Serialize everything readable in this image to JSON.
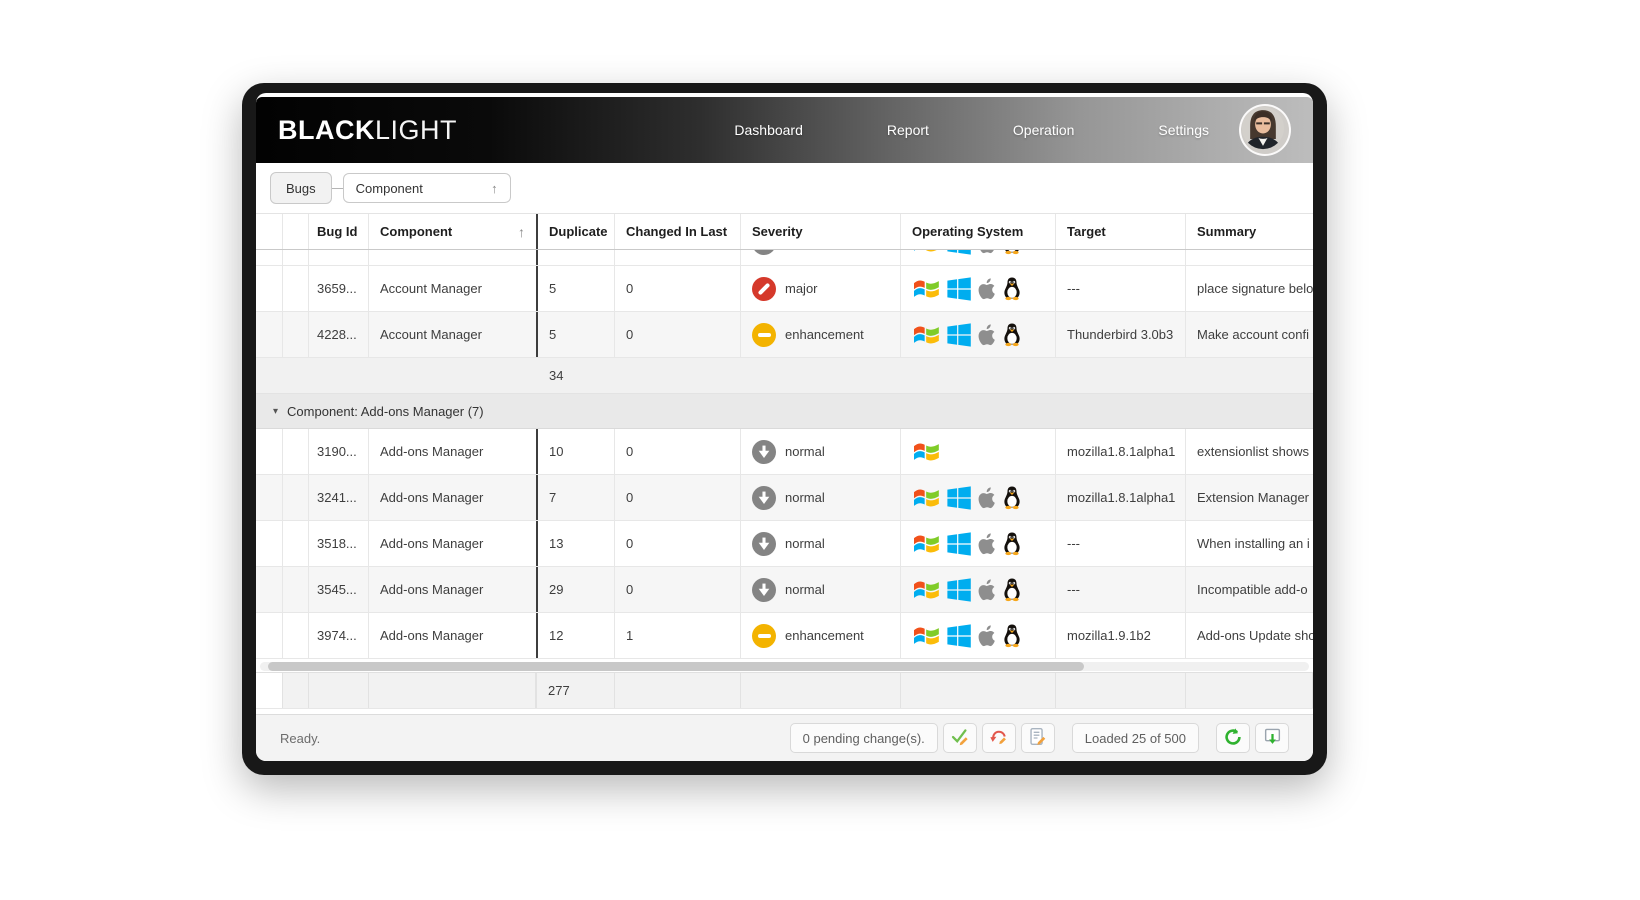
{
  "header": {
    "brand_bold": "BLACK",
    "brand_light": "LIGHT",
    "nav": [
      {
        "label": "Dashboard"
      },
      {
        "label": "Report"
      },
      {
        "label": "Operation"
      },
      {
        "label": "Settings"
      }
    ],
    "avatar": "user-avatar"
  },
  "toolbar": {
    "bugs_label": "Bugs",
    "group_field": "Component",
    "sort_direction": "ascending"
  },
  "grid": {
    "columns": [
      {
        "key": "handle",
        "label": ""
      },
      {
        "key": "handle2",
        "label": ""
      },
      {
        "key": "bug_id",
        "label": "Bug Id"
      },
      {
        "key": "component",
        "label": "Component",
        "sort": "ascending"
      },
      {
        "key": "duplicate",
        "label": "Duplicate"
      },
      {
        "key": "changed",
        "label": "Changed In Last"
      },
      {
        "key": "severity",
        "label": "Severity"
      },
      {
        "key": "os",
        "label": "Operating System"
      },
      {
        "key": "target",
        "label": "Target"
      },
      {
        "key": "summary",
        "label": "Summary"
      }
    ],
    "severity_styles": {
      "major": "#d5392b",
      "enhancement": "#f3b300",
      "normal": "#848484"
    },
    "body": [
      {
        "type": "clipped_row",
        "severity": "normal",
        "os": [
          "windows-legacy",
          "windows",
          "apple",
          "linux"
        ]
      },
      {
        "type": "row",
        "shade": false,
        "bug_id": "3659...",
        "component": "Account Manager",
        "duplicate": "5",
        "changed": "0",
        "severity": "major",
        "os": [
          "windows-legacy",
          "windows",
          "apple",
          "linux"
        ],
        "target": "---",
        "summary": "place signature belo"
      },
      {
        "type": "row",
        "shade": true,
        "bug_id": "4228...",
        "component": "Account Manager",
        "duplicate": "5",
        "changed": "0",
        "severity": "enhancement",
        "os": [
          "windows-legacy",
          "windows",
          "apple",
          "linux"
        ],
        "target": "Thunderbird 3.0b3",
        "summary": "Make account confi"
      },
      {
        "type": "group_summary",
        "duplicate": "34"
      },
      {
        "type": "group_header",
        "label": "Component: Add-ons Manager (7)"
      },
      {
        "type": "row",
        "shade": false,
        "bug_id": "3190...",
        "component": "Add-ons Manager",
        "duplicate": "10",
        "changed": "0",
        "severity": "normal",
        "os": [
          "windows-legacy"
        ],
        "target": "mozilla1.8.1alpha1",
        "summary": "extensionlist shows"
      },
      {
        "type": "row",
        "shade": true,
        "bug_id": "3241...",
        "component": "Add-ons Manager",
        "duplicate": "7",
        "changed": "0",
        "severity": "normal",
        "os": [
          "windows-legacy",
          "windows",
          "apple",
          "linux"
        ],
        "target": "mozilla1.8.1alpha1",
        "summary": "Extension Manager"
      },
      {
        "type": "row",
        "shade": false,
        "bug_id": "3518...",
        "component": "Add-ons Manager",
        "duplicate": "13",
        "changed": "0",
        "severity": "normal",
        "os": [
          "windows-legacy",
          "windows",
          "apple",
          "linux"
        ],
        "target": "---",
        "summary": "When installing an i"
      },
      {
        "type": "row",
        "shade": true,
        "bug_id": "3545...",
        "component": "Add-ons Manager",
        "duplicate": "29",
        "changed": "0",
        "severity": "normal",
        "os": [
          "windows-legacy",
          "windows",
          "apple",
          "linux"
        ],
        "target": "---",
        "summary": "Incompatible add-o"
      },
      {
        "type": "row",
        "shade": false,
        "bug_id": "3974...",
        "component": "Add-ons Manager",
        "duplicate": "12",
        "changed": "1",
        "severity": "enhancement",
        "os": [
          "windows-legacy",
          "windows",
          "apple",
          "linux"
        ],
        "target": "mozilla1.9.1b2",
        "summary": "Add-ons Update sho"
      }
    ],
    "grand_summary": {
      "duplicate": "277"
    }
  },
  "statusbar": {
    "status": "Ready.",
    "pending": "0 pending change(s).",
    "loaded": "Loaded 25 of 500",
    "icons": [
      "apply-changes-icon",
      "revert-changes-icon",
      "edit-log-icon",
      "refresh-icon",
      "export-icon"
    ]
  }
}
